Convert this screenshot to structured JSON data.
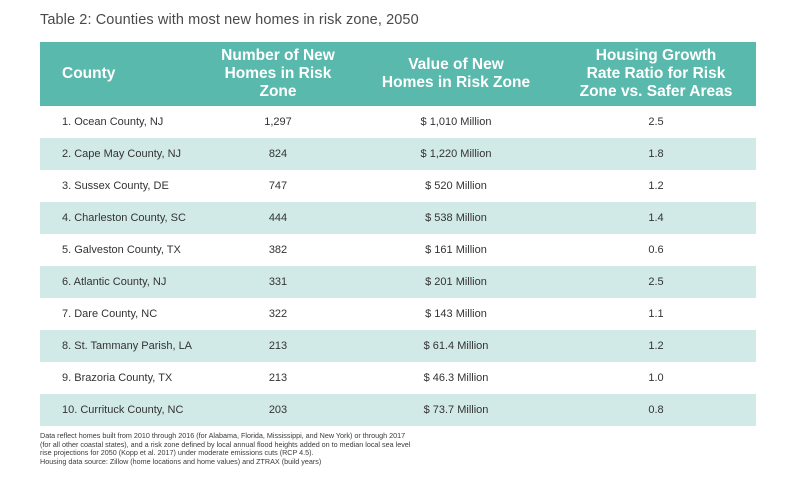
{
  "title": "Table 2: Counties with most new homes in risk zone, 2050",
  "table": {
    "headers": [
      "County",
      "Number of New Homes in Risk Zone",
      "Value of New Homes in Risk Zone",
      "Housing Growth Rate Ratio for Risk Zone vs. Safer Areas"
    ],
    "header_lines": [
      [
        "County"
      ],
      [
        "Number of New",
        "Homes in Risk Zone"
      ],
      [
        "Value of New",
        "Homes in Risk Zone"
      ],
      [
        "Housing Growth",
        "Rate Ratio for Risk",
        "Zone vs. Safer Areas"
      ]
    ],
    "rows": [
      [
        "1. Ocean County, NJ",
        "1,297",
        "$ 1,010 Million",
        "2.5"
      ],
      [
        "2. Cape May County, NJ",
        "824",
        "$ 1,220 Million",
        "1.8"
      ],
      [
        "3. Sussex County, DE",
        "747",
        "$ 520 Million",
        "1.2"
      ],
      [
        "4. Charleston County, SC",
        "444",
        "$ 538 Million",
        "1.4"
      ],
      [
        "5. Galveston County, TX",
        "382",
        "$ 161 Million",
        "0.6"
      ],
      [
        "6. Atlantic County, NJ",
        "331",
        "$ 201 Million",
        "2.5"
      ],
      [
        "7. Dare County, NC",
        "322",
        "$ 143 Million",
        "1.1"
      ],
      [
        "8. St. Tammany Parish, LA",
        "213",
        "$ 61.4 Million",
        "1.2"
      ],
      [
        "9. Brazoria County, TX",
        "213",
        "$ 46.3 Million",
        "1.0"
      ],
      [
        "10. Currituck County, NC",
        "203",
        "$ 73.7 Million",
        "0.8"
      ]
    ]
  },
  "footnote": {
    "lines": [
      "Data reflect homes built from 2010 through 2016 (for Alabama, Florida, Mississippi, and New York) or through 2017",
      "(for all other coastal states), and a risk zone defined by local annual flood heights added on to median local sea level",
      "rise projections for 2050 (Kopp et al. 2017) under moderate emissions cuts (RCP 4.5).",
      "Housing data source: Zillow (home locations and home values) and ZTRAX (build years)"
    ]
  },
  "colors": {
    "header_bg": "#5ab9ad",
    "row_alt_bg": "#d2eae7",
    "header_text": "#ffffff"
  }
}
